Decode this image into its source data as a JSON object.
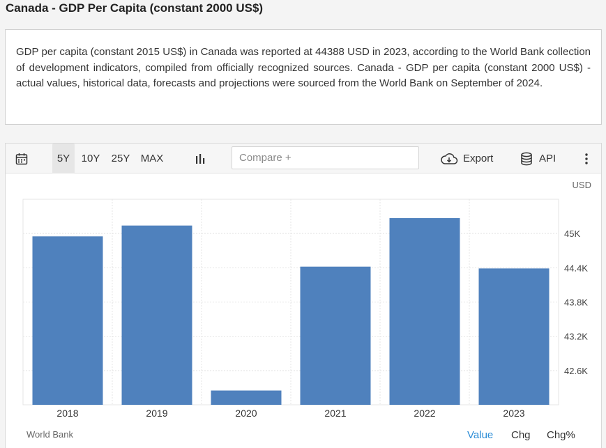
{
  "page": {
    "title": "Canada - GDP Per Capita (constant 2000 US$)",
    "description": "GDP per capita (constant 2015 US$) in Canada was reported at 44388 USD in 2023, according to the World Bank collection of development indicators, compiled from officially recognized sources. Canada - GDP per capita (constant 2000 US$) - actual values, historical data, forecasts and projections were sourced from the World Bank on September of 2024."
  },
  "toolbar": {
    "ranges": [
      "5Y",
      "10Y",
      "25Y",
      "MAX"
    ],
    "active_range": "5Y",
    "compare_placeholder": "Compare +",
    "export_label": "Export",
    "api_label": "API",
    "icons": [
      "calendar-icon",
      "bar-chart-icon",
      "cloud-download-icon",
      "database-icon",
      "more-vertical-icon"
    ]
  },
  "chart_data": {
    "type": "bar",
    "categories": [
      "2018",
      "2019",
      "2020",
      "2021",
      "2022",
      "2023"
    ],
    "values": [
      44950,
      45140,
      42250,
      44420,
      45270,
      44388
    ],
    "unit": "USD",
    "ylim": [
      42000,
      45600
    ],
    "yticks": [
      42600,
      43200,
      43800,
      44400,
      45000
    ],
    "ytick_labels": [
      "42.6K",
      "43.2K",
      "43.8K",
      "44.4K",
      "45K"
    ],
    "grid": true,
    "bar_color": "#4f81bd"
  },
  "footer": {
    "source": "World Bank",
    "tabs": [
      "Value",
      "Chg",
      "Chg%"
    ],
    "active_tab": "Value"
  }
}
